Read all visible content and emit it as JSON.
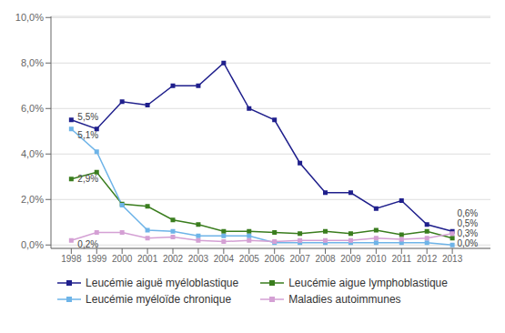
{
  "chart_data": {
    "type": "line",
    "x": [
      1998,
      1999,
      2000,
      2001,
      2002,
      2003,
      2004,
      2005,
      2006,
      2007,
      2008,
      2009,
      2010,
      2011,
      2012,
      2013
    ],
    "series": [
      {
        "name": "Leucémie aiguë myéloblastique",
        "color": "#1F1F8C",
        "marker": "square",
        "values": [
          5.5,
          5.1,
          6.3,
          6.15,
          7.0,
          7.0,
          8.0,
          6.0,
          5.5,
          3.6,
          2.3,
          2.3,
          1.6,
          1.95,
          0.9,
          0.6
        ]
      },
      {
        "name": "Leucémie aigue lymphoblastique",
        "color": "#3A7D1E",
        "marker": "square",
        "values": [
          2.9,
          3.2,
          1.8,
          1.7,
          1.1,
          0.9,
          0.6,
          0.6,
          0.55,
          0.5,
          0.6,
          0.5,
          0.65,
          0.45,
          0.6,
          0.3
        ]
      },
      {
        "name": "Leucémie myéloïde chronique",
        "color": "#6EB4E8",
        "marker": "square",
        "values": [
          5.1,
          4.1,
          1.75,
          0.65,
          0.6,
          0.4,
          0.4,
          0.4,
          0.1,
          0.1,
          0.1,
          0.1,
          0.1,
          0.1,
          0.1,
          0.0
        ]
      },
      {
        "name": "Maladies autoimmunes",
        "color": "#D4A0D4",
        "marker": "square",
        "values": [
          0.2,
          0.55,
          0.55,
          0.3,
          0.35,
          0.2,
          0.15,
          0.2,
          0.15,
          0.2,
          0.2,
          0.2,
          0.3,
          0.25,
          0.3,
          0.5
        ]
      }
    ],
    "xlim": [
      1997.2,
      2014.5
    ],
    "xticks": [
      1998,
      1999,
      2000,
      2001,
      2002,
      2003,
      2004,
      2005,
      2006,
      2007,
      2008,
      2009,
      2010,
      2011,
      2012,
      2013
    ],
    "ylim": [
      -0.15,
      10.05
    ],
    "yticks": [
      {
        "value": 0.0,
        "label": "0,0%"
      },
      {
        "value": 2.0,
        "label": "2,0%"
      },
      {
        "value": 4.0,
        "label": "4,0%"
      },
      {
        "value": 6.0,
        "label": "6,0%"
      },
      {
        "value": 8.0,
        "label": "8,0%"
      },
      {
        "value": 10.0,
        "label": "10,0%"
      }
    ],
    "grid": "y",
    "legend": "bottom",
    "annotations": [
      {
        "text": "5,5%",
        "x": 1998.18,
        "y": 5.65
      },
      {
        "text": "5,1%",
        "x": 1998.18,
        "y": 4.85
      },
      {
        "text": "2,9%",
        "x": 1998.18,
        "y": 2.9
      },
      {
        "text": "0,2%",
        "x": 1998.18,
        "y": 0.05
      },
      {
        "text": "0,6%",
        "x": 2013.12,
        "y": 0.62
      },
      {
        "text": "0,5%",
        "x": 2013.12,
        "y": 0.44
      },
      {
        "text": "0,3%",
        "x": 2013.12,
        "y": 0.26
      },
      {
        "text": "0,0%",
        "x": 2013.12,
        "y": 0.08
      }
    ]
  }
}
